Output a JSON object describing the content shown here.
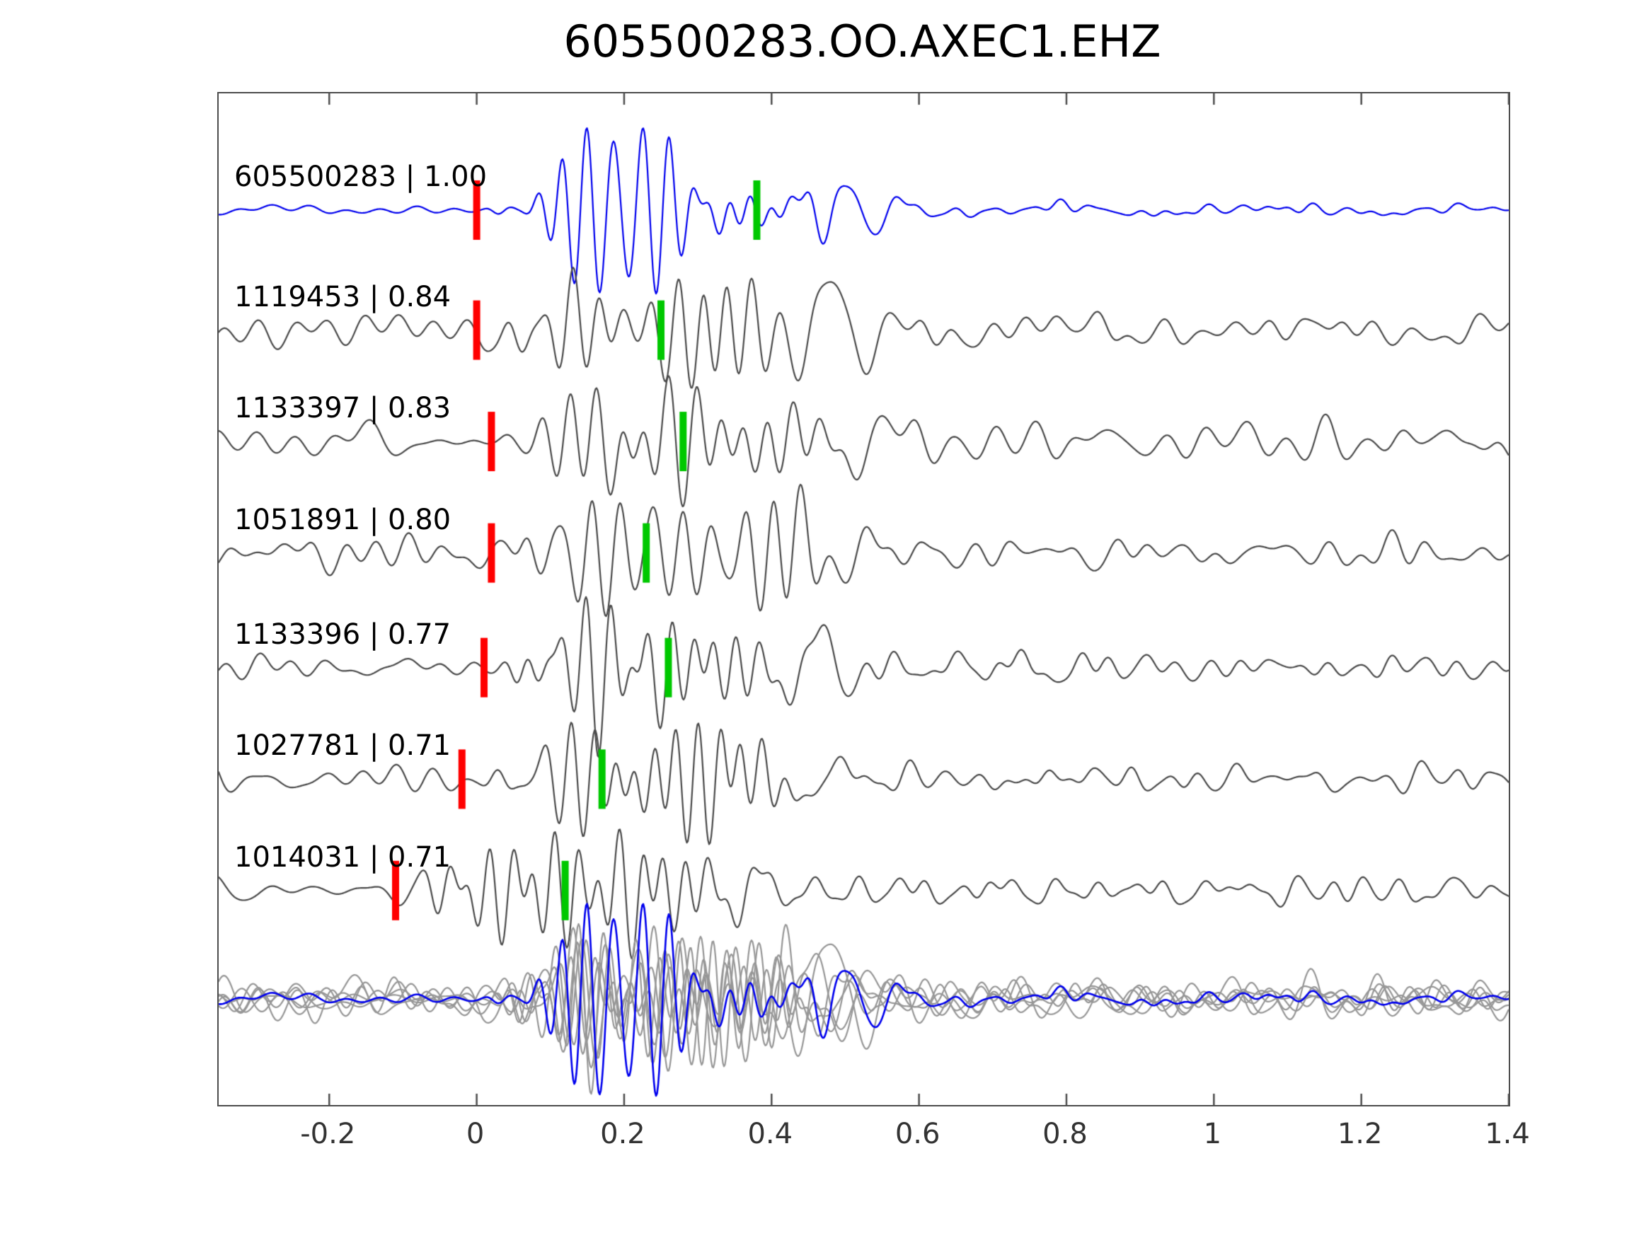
{
  "title": "605500283.OO.AXEC1.EHZ",
  "chart_data": {
    "type": "line",
    "title": "605500283.OO.AXEC1.EHZ",
    "xlabel": "",
    "ylabel": "",
    "xlim": [
      -0.35,
      1.4
    ],
    "x_ticks": [
      -0.2,
      0,
      0.2,
      0.4,
      0.6,
      0.8,
      1,
      1.2,
      1.4
    ],
    "x_tick_labels": [
      "-0.2",
      "0",
      "0.2",
      "0.4",
      "0.6",
      "0.8",
      "1",
      "1.2",
      "1.4"
    ],
    "grid": false,
    "legend": "none",
    "colors": {
      "template_trace": "#0000ee",
      "match_trace": "#4a4a4a",
      "overlay_trace": "#979797",
      "red_marker": "#ff0000",
      "green_marker": "#00c800",
      "axis": "#4d4d4d",
      "background": "#ffffff",
      "text": "#000000"
    },
    "traces": [
      {
        "id": "605500283",
        "correlation": 1.0,
        "label": "605500283 | 1.00",
        "role": "template",
        "red_pick": 0.0,
        "green_pick": 0.38,
        "seed": 41
      },
      {
        "id": "1119453",
        "correlation": 0.84,
        "label": "1119453 | 0.84",
        "role": "match",
        "red_pick": 0.0,
        "green_pick": 0.25,
        "seed": 7
      },
      {
        "id": "1133397",
        "correlation": 0.83,
        "label": "1133397 | 0.83",
        "role": "match",
        "red_pick": 0.02,
        "green_pick": 0.28,
        "seed": 13
      },
      {
        "id": "1051891",
        "correlation": 0.8,
        "label": "1051891 | 0.80",
        "role": "match",
        "red_pick": 0.02,
        "green_pick": 0.23,
        "seed": 23
      },
      {
        "id": "1133396",
        "correlation": 0.77,
        "label": "1133396 | 0.77",
        "role": "match",
        "red_pick": 0.01,
        "green_pick": 0.26,
        "seed": 31
      },
      {
        "id": "1027781",
        "correlation": 0.71,
        "label": "1027781 | 0.71",
        "role": "match",
        "red_pick": -0.02,
        "green_pick": 0.17,
        "seed": 5
      },
      {
        "id": "1014031",
        "correlation": 0.71,
        "label": "1014031 | 0.71",
        "role": "match",
        "red_pick": -0.11,
        "green_pick": 0.12,
        "seed": 17
      }
    ],
    "overlay_row": {
      "description": "all traces aligned on red pick and superimposed; template drawn in blue over gray matches"
    }
  }
}
